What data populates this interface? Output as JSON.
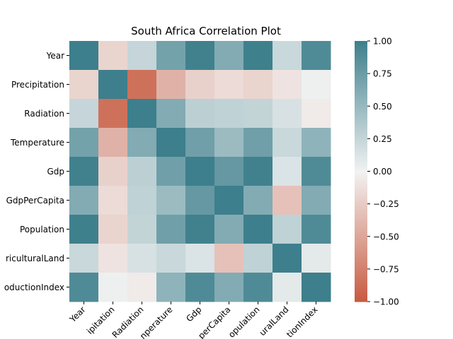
{
  "chart_data": {
    "type": "heatmap",
    "title": "South Africa Correlation Plot",
    "rows": [
      "Year",
      "Precipitation",
      "Radiation",
      "Temperature",
      "Gdp",
      "GdpPerCapita",
      "Population",
      "AgriculturalLand",
      "FoodProductionIndex"
    ],
    "cols": [
      "Year",
      "Precipitation",
      "Radiation",
      "Temperature",
      "Gdp",
      "GdpPerCapita",
      "Population",
      "AgriculturalLand",
      "FoodProductionIndex"
    ],
    "x_tick_labels_visible": [
      "Year",
      "ipitation",
      "Radiation",
      "nperature",
      "Gdp",
      "perCapita",
      "opulation",
      "uralLand",
      "tionIndex"
    ],
    "y_tick_labels_visible": [
      "Year",
      "Precipitation",
      "Radiation",
      "Temperature",
      "Gdp",
      "GdpPerCapita",
      "Population",
      "riculturalLand",
      "oductionIndex"
    ],
    "values": [
      [
        1.0,
        -0.2,
        0.25,
        0.7,
        0.98,
        0.62,
        0.99,
        0.23,
        0.9
      ],
      [
        -0.2,
        1.0,
        -0.85,
        -0.42,
        -0.22,
        -0.15,
        -0.2,
        -0.1,
        0.02
      ],
      [
        0.25,
        -0.85,
        1.0,
        0.62,
        0.3,
        0.28,
        0.26,
        0.15,
        -0.05
      ],
      [
        0.7,
        -0.42,
        0.62,
        1.0,
        0.72,
        0.48,
        0.72,
        0.23,
        0.55
      ],
      [
        0.98,
        -0.22,
        0.3,
        0.72,
        1.0,
        0.78,
        0.98,
        0.13,
        0.9
      ],
      [
        0.62,
        -0.15,
        0.28,
        0.48,
        0.78,
        1.0,
        0.62,
        -0.32,
        0.62
      ],
      [
        0.99,
        -0.2,
        0.26,
        0.72,
        0.98,
        0.62,
        1.0,
        0.28,
        0.9
      ],
      [
        0.23,
        -0.1,
        0.15,
        0.23,
        0.13,
        -0.32,
        0.28,
        1.0,
        0.08
      ],
      [
        0.9,
        0.02,
        -0.05,
        0.55,
        0.9,
        0.62,
        0.9,
        0.08,
        1.0
      ]
    ],
    "vmin": -1.0,
    "vmax": 1.0,
    "colorbar_ticks": [
      1.0,
      0.75,
      0.5,
      0.25,
      0.0,
      -0.25,
      -0.5,
      -0.75,
      -1.0
    ],
    "colorbar_tick_labels": [
      "1.00",
      "0.75",
      "0.50",
      "0.25",
      "0.00",
      "−0.25",
      "−0.50",
      "−0.75",
      "−1.00"
    ],
    "colormap": {
      "negative": "#c85a40",
      "center": "#f2f2f2",
      "positive": "#3d7f8c"
    }
  }
}
